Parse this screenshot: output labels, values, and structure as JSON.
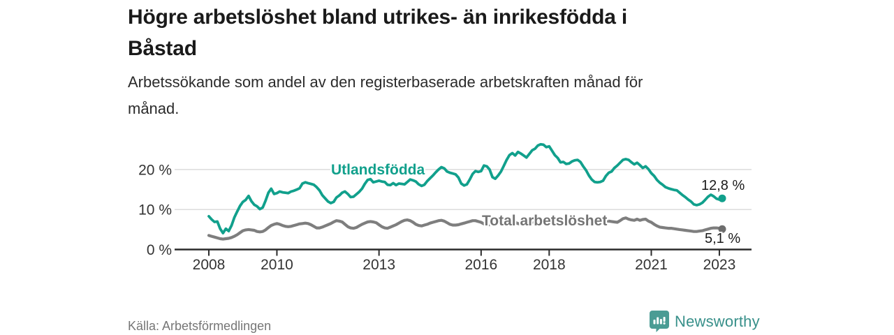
{
  "header": {
    "title": "Högre arbetslöshet bland utrikes- än inrikesfödda i\nBåstad",
    "subtitle": "Arbetssökande som andel av den registerbaserade arbetskraften månad för\nmånad."
  },
  "footer": {
    "source": "Källa: Arbetsförmedlingen",
    "brand": "Newsworthy"
  },
  "colors": {
    "accent_teal": "#11a08c",
    "series_gray": "#7e7e7e",
    "gridline": "#dcdcdc",
    "axis": "#2b2b2b",
    "tick_label": "#333333",
    "logo_teal": "#4a9c94"
  },
  "chart_data": {
    "type": "line",
    "title": "Högre arbetslöshet bland utrikes- än inrikesfödda i Båstad",
    "subtitle": "Arbetssökande som andel av den registerbaserade arbetskraften månad för månad.",
    "x_unit": "month",
    "x_start_year": 2008,
    "x_end": "2023-02",
    "grid": true,
    "legend_position": "inline-labels",
    "ylim": [
      0,
      28
    ],
    "xticks": [
      "2008",
      "2010",
      "2013",
      "2016",
      "2018",
      "2021",
      "2023"
    ],
    "yticks": [
      {
        "value": 0,
        "label": "0 %"
      },
      {
        "value": 10,
        "label": "10 %"
      },
      {
        "value": 20,
        "label": "20 %"
      }
    ],
    "series": [
      {
        "name": "Utlandsfödda",
        "color": "#11a08c",
        "end_label": "12,8 %",
        "end_value": 12.8,
        "values": [
          8.3,
          7.5,
          6.9,
          7.0,
          5.2,
          4.1,
          5.2,
          4.6,
          6.0,
          8.0,
          9.5,
          10.9,
          11.9,
          12.4,
          13.4,
          12.1,
          11.2,
          10.8,
          10.1,
          10.5,
          12.2,
          14.2,
          15.2,
          13.9,
          14.1,
          14.5,
          14.3,
          14.2,
          14.1,
          14.5,
          14.7,
          15.0,
          15.3,
          16.5,
          16.8,
          16.6,
          16.4,
          16.2,
          15.6,
          14.8,
          13.6,
          12.8,
          12.0,
          11.6,
          11.9,
          13.0,
          13.5,
          14.2,
          14.5,
          13.9,
          13.1,
          13.2,
          13.8,
          14.4,
          15.2,
          16.4,
          17.4,
          17.6,
          16.8,
          17.0,
          17.2,
          17.0,
          16.9,
          16.2,
          16.1,
          16.6,
          16.1,
          16.5,
          16.4,
          16.3,
          16.9,
          17.5,
          17.3,
          17.0,
          16.3,
          15.9,
          16.2,
          17.1,
          17.8,
          18.5,
          19.3,
          20.0,
          20.6,
          20.3,
          19.5,
          19.2,
          19.0,
          18.8,
          18.0,
          16.5,
          16.0,
          16.3,
          17.5,
          18.9,
          19.6,
          19.4,
          19.6,
          21.0,
          20.8,
          20.0,
          18.1,
          17.7,
          18.5,
          19.5,
          20.9,
          22.4,
          23.6,
          24.1,
          23.5,
          24.4,
          24.0,
          23.5,
          23.0,
          23.9,
          24.8,
          25.2,
          26.0,
          26.3,
          26.2,
          25.6,
          25.8,
          24.7,
          23.6,
          22.9,
          21.8,
          21.9,
          21.4,
          21.5,
          22.0,
          22.3,
          22.4,
          21.9,
          20.8,
          19.8,
          18.5,
          17.5,
          16.9,
          16.8,
          16.9,
          17.2,
          18.4,
          19.2,
          19.5,
          20.4,
          21.0,
          21.7,
          22.4,
          22.6,
          22.4,
          21.8,
          21.3,
          21.7,
          21.1,
          20.4,
          20.8,
          20.1,
          19.1,
          18.4,
          17.4,
          16.7,
          16.2,
          15.6,
          15.3,
          15.1,
          14.9,
          14.8,
          14.2,
          13.6,
          13.1,
          12.5,
          12.0,
          11.3,
          11.1,
          11.3,
          11.7,
          12.4,
          13.2,
          13.7,
          13.3,
          12.7,
          12.5,
          12.8
        ]
      },
      {
        "name": "Total arbetslöshet",
        "color": "#7e7e7e",
        "end_label": "5,1 %",
        "end_value": 5.1,
        "values": [
          3.5,
          3.3,
          3.1,
          2.9,
          2.7,
          2.6,
          2.7,
          2.8,
          3.0,
          3.3,
          3.7,
          4.2,
          4.7,
          4.9,
          5.0,
          4.9,
          4.8,
          4.5,
          4.4,
          4.5,
          4.9,
          5.5,
          6.0,
          6.3,
          6.5,
          6.3,
          6.0,
          5.8,
          5.7,
          5.8,
          6.0,
          6.2,
          6.4,
          6.5,
          6.6,
          6.5,
          6.2,
          5.8,
          5.4,
          5.4,
          5.6,
          5.9,
          6.2,
          6.5,
          6.9,
          7.2,
          7.1,
          6.9,
          6.3,
          5.7,
          5.4,
          5.3,
          5.5,
          5.9,
          6.3,
          6.6,
          6.9,
          7.0,
          6.9,
          6.7,
          6.2,
          5.7,
          5.4,
          5.3,
          5.6,
          5.9,
          6.2,
          6.6,
          7.0,
          7.3,
          7.4,
          7.2,
          6.8,
          6.3,
          6.0,
          5.9,
          6.1,
          6.3,
          6.6,
          6.8,
          7.0,
          7.2,
          7.3,
          7.1,
          6.7,
          6.3,
          6.1,
          6.1,
          6.2,
          6.4,
          6.6,
          6.8,
          7.0,
          7.2,
          7.2,
          7.0,
          6.8,
          6.4,
          6.2,
          6.2,
          6.3,
          6.5,
          6.7,
          6.9,
          7.1,
          7.3,
          7.4,
          7.2,
          6.8,
          6.5,
          6.3,
          6.3,
          6.4,
          6.6,
          6.8,
          7.0,
          7.2,
          7.4,
          7.5,
          7.3,
          6.9,
          6.5,
          6.3,
          6.3,
          6.4,
          6.6,
          6.7,
          6.9,
          7.1,
          7.3,
          7.4,
          7.2,
          6.8,
          6.5,
          6.4,
          6.4,
          6.5,
          6.6,
          6.7,
          6.8,
          7.0,
          7.1,
          7.0,
          6.9,
          6.8,
          7.2,
          7.7,
          7.9,
          7.6,
          7.4,
          7.3,
          7.6,
          7.3,
          7.5,
          7.6,
          7.1,
          6.8,
          6.3,
          5.9,
          5.6,
          5.5,
          5.4,
          5.3,
          5.3,
          5.2,
          5.1,
          5.0,
          4.9,
          4.8,
          4.7,
          4.6,
          4.5,
          4.5,
          4.6,
          4.7,
          4.9,
          5.1,
          5.3,
          5.4,
          5.4,
          5.3,
          5.1
        ]
      }
    ]
  }
}
